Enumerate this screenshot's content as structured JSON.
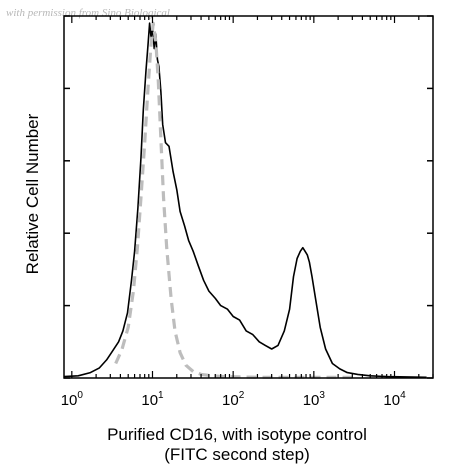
{
  "watermark": "with permission from Sino Biological",
  "chart_data": {
    "type": "line",
    "xscale": "log",
    "xlim": [
      0.8,
      30000
    ],
    "ylim": [
      0,
      100
    ],
    "xlabel": [
      "Purified CD16, with isotype control",
      "(FITC second step)"
    ],
    "ylabel": "Relative Cell Number",
    "x_ticks": [
      {
        "value": 1,
        "base": "10",
        "exp": "0"
      },
      {
        "value": 10,
        "base": "10",
        "exp": "1"
      },
      {
        "value": 100,
        "base": "10",
        "exp": "2"
      },
      {
        "value": 1000,
        "base": "10",
        "exp": "3"
      },
      {
        "value": 10000,
        "base": "10",
        "exp": "4"
      }
    ],
    "y_ticks": [
      0,
      20,
      40,
      60,
      80,
      100
    ],
    "series": [
      {
        "style": "solid",
        "color": "#000000",
        "x": [
          0.8,
          1.2,
          1.7,
          2.2,
          2.7,
          3.2,
          3.8,
          4.3,
          4.9,
          5.5,
          6.0,
          6.6,
          7.2,
          7.7,
          8.3,
          8.8,
          9.2,
          9.6,
          10.0,
          10.5,
          11.0,
          11.5,
          12.0,
          12.7,
          13.4,
          14.5,
          16,
          18,
          20,
          22,
          25,
          28,
          32,
          37,
          43,
          50,
          60,
          70,
          85,
          100,
          120,
          145,
          175,
          210,
          250,
          300,
          360,
          430,
          500,
          560,
          620,
          680,
          730,
          780,
          830,
          880,
          950,
          1050,
          1200,
          1400,
          1700,
          2100,
          2600,
          3500,
          5000,
          8000,
          14000,
          25000
        ],
        "y": [
          0.4,
          0.6,
          1.5,
          2.8,
          5,
          7.5,
          10,
          13,
          18,
          27,
          35,
          47,
          61,
          74,
          85,
          92,
          98,
          94,
          97,
          91,
          95,
          88,
          86,
          79,
          70,
          65,
          64,
          57,
          52,
          46,
          42,
          38,
          35,
          31,
          27,
          24,
          22,
          20,
          19,
          17,
          16,
          13,
          12,
          10,
          9,
          8,
          9,
          13,
          19,
          28,
          33,
          35,
          36,
          35,
          34,
          32,
          28,
          22,
          14,
          8,
          4,
          2.5,
          1.5,
          1,
          0.6,
          0.4,
          0.3,
          0.2
        ]
      },
      {
        "style": "dashed",
        "color": "#bdbdbd",
        "x": [
          3.5,
          4.2,
          5.0,
          5.8,
          6.5,
          7.2,
          8.0,
          8.8,
          9.5,
          10.2,
          11.0,
          11.8,
          12.7,
          13.7,
          15,
          17,
          19,
          22,
          26,
          32,
          40,
          55,
          80,
          120,
          200,
          400,
          1000,
          3000
        ],
        "y": [
          4,
          8,
          14,
          24,
          36,
          50,
          65,
          80,
          91,
          98,
          93,
          82,
          66,
          50,
          36,
          22,
          13,
          7,
          3.5,
          1.8,
          1,
          0.6,
          0.4,
          0.3,
          0.2,
          0.2,
          0.2,
          0.2
        ]
      }
    ]
  }
}
